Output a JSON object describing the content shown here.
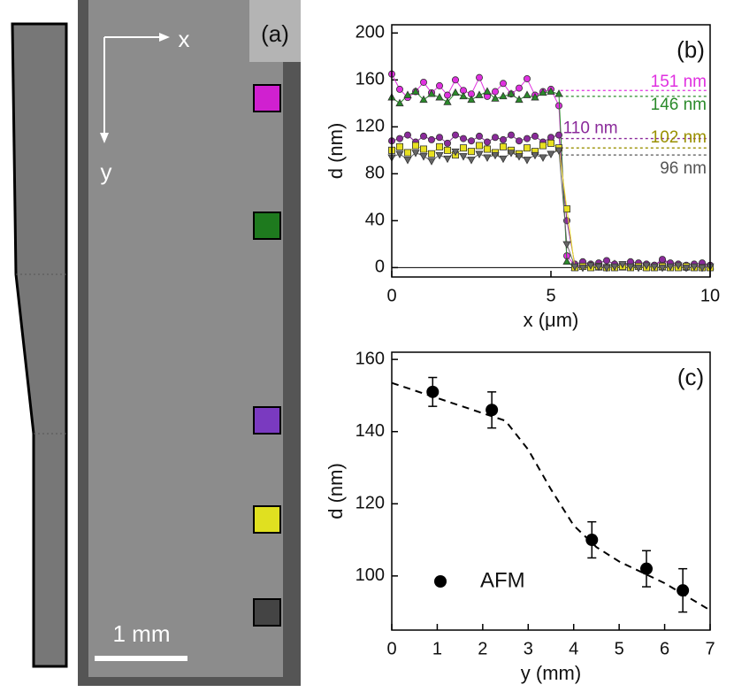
{
  "panel_a": {
    "label": "(a)",
    "x_axis": "x",
    "y_axis": "y",
    "scale_bar": "1 mm"
  },
  "chart_data": [
    {
      "type": "line",
      "label": "(b)",
      "xlabel": "x (μm)",
      "ylabel": "d (nm)",
      "xlim": [
        0,
        10
      ],
      "xticks": [
        0,
        5,
        10
      ],
      "ylim": [
        -8,
        207
      ],
      "yticks": [
        0,
        40,
        80,
        120,
        160,
        200
      ],
      "x": [
        0,
        0.25,
        0.5,
        0.75,
        1,
        1.25,
        1.5,
        1.75,
        2,
        2.25,
        2.5,
        2.75,
        3,
        3.25,
        3.5,
        3.75,
        4,
        4.25,
        4.5,
        4.75,
        5,
        5.25,
        5.5,
        5.75,
        6,
        6.25,
        6.5,
        6.75,
        7,
        7.25,
        7.5,
        7.75,
        8,
        8.25,
        8.5,
        8.75,
        9,
        9.25,
        9.5,
        9.75,
        10
      ],
      "series": [
        {
          "color": "#e030e0",
          "marker": "circle",
          "values": [
            165,
            152,
            145,
            150,
            158,
            149,
            155,
            147,
            160,
            151,
            148,
            162,
            146,
            150,
            157,
            148,
            153,
            161,
            147,
            150,
            152,
            138,
            10,
            2,
            1,
            3,
            2,
            0,
            1,
            2,
            3,
            1,
            0,
            2,
            6,
            3,
            1,
            0,
            1,
            2,
            1
          ]
        },
        {
          "color": "#2a8a2a",
          "marker": "triangle",
          "values": [
            145,
            140,
            147,
            150,
            143,
            148,
            145,
            141,
            149,
            146,
            143,
            147,
            150,
            144,
            146,
            148,
            143,
            147,
            145,
            149,
            150,
            148,
            5,
            0,
            1,
            2,
            0,
            1,
            3,
            0,
            1,
            2,
            0,
            1,
            0,
            2,
            1,
            0,
            1,
            0,
            1
          ]
        },
        {
          "color": "#8a2a9a",
          "marker": "circle",
          "values": [
            108,
            110,
            113,
            107,
            112,
            109,
            111,
            106,
            113,
            110,
            108,
            112,
            107,
            111,
            109,
            113,
            108,
            110,
            112,
            107,
            111,
            113,
            40,
            3,
            5,
            2,
            4,
            6,
            3,
            2,
            5,
            4,
            3,
            2,
            7,
            4,
            3,
            2,
            3,
            4,
            2
          ]
        },
        {
          "color": "#e8e020",
          "marker": "square",
          "values": [
            100,
            103,
            98,
            104,
            101,
            97,
            103,
            100,
            96,
            102,
            99,
            104,
            101,
            98,
            103,
            100,
            97,
            102,
            99,
            104,
            106,
            102,
            50,
            0,
            1,
            0,
            1,
            0,
            0,
            1,
            0,
            1,
            0,
            0,
            1,
            0,
            0,
            1,
            0,
            0,
            0
          ]
        },
        {
          "color": "#666666",
          "marker": "down-triangle",
          "values": [
            94,
            97,
            92,
            98,
            95,
            91,
            96,
            93,
            99,
            95,
            92,
            97,
            94,
            96,
            93,
            98,
            95,
            92,
            96,
            94,
            97,
            100,
            20,
            1,
            0,
            2,
            1,
            0,
            1,
            3,
            1,
            0,
            2,
            1,
            0,
            1,
            2,
            0,
            1,
            0,
            1
          ]
        }
      ],
      "annotations": [
        {
          "label": "151 nm",
          "value": 151,
          "color": "#e030e0"
        },
        {
          "label": "146 nm",
          "value": 146,
          "color": "#2a8a2a"
        },
        {
          "label": "110 nm",
          "value": 110,
          "color": "#8a2a9a"
        },
        {
          "label": "102 nm",
          "value": 102,
          "color": "#9a9000"
        },
        {
          "label": "96 nm",
          "value": 96,
          "color": "#555555"
        }
      ]
    },
    {
      "type": "scatter",
      "label": "(c)",
      "xlabel": "y (mm)",
      "ylabel": "d (nm)",
      "xlim": [
        0,
        7
      ],
      "xticks": [
        0,
        1,
        2,
        3,
        4,
        5,
        6,
        7
      ],
      "ylim": [
        85,
        162
      ],
      "yticks": [
        100,
        120,
        140,
        160
      ],
      "series": [
        {
          "name": "AFM",
          "color": "#000000",
          "x": [
            0.9,
            2.2,
            4.4,
            5.6,
            6.4
          ],
          "values": [
            151,
            146,
            110,
            102,
            96
          ],
          "errors": [
            4,
            5,
            5,
            5,
            6
          ]
        }
      ],
      "fit": {
        "x": [
          0,
          2.5,
          3,
          3.5,
          4,
          4.5,
          5,
          6,
          7
        ],
        "values": [
          153.5,
          143,
          135,
          124,
          114,
          108,
          104,
          98,
          90.5
        ]
      }
    }
  ]
}
